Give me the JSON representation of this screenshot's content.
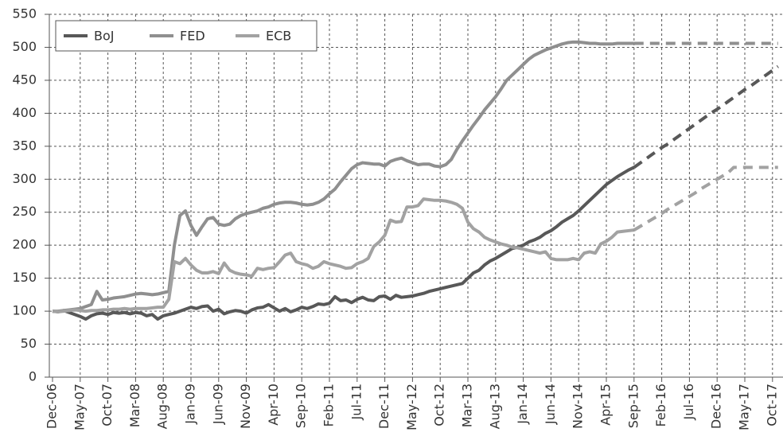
{
  "chart_data": {
    "type": "line",
    "categories": [
      "Dec-06",
      null,
      null,
      null,
      null,
      "May-07",
      null,
      null,
      null,
      null,
      "Oct-07",
      null,
      null,
      null,
      null,
      "Mar-08",
      null,
      null,
      null,
      null,
      "Aug-08",
      null,
      null,
      null,
      null,
      "Jan-09",
      null,
      null,
      null,
      null,
      "Jun-09",
      null,
      null,
      null,
      null,
      "Nov-09",
      null,
      null,
      null,
      null,
      "Apr-10",
      null,
      null,
      null,
      null,
      "Sep-10",
      null,
      null,
      null,
      null,
      "Feb-11",
      null,
      null,
      null,
      null,
      "Jul-11",
      null,
      null,
      null,
      null,
      "Dec-11",
      null,
      null,
      null,
      null,
      "May-12",
      null,
      null,
      null,
      null,
      "Oct-12",
      null,
      null,
      null,
      null,
      "Mar-13",
      null,
      null,
      null,
      null,
      "Aug-13",
      null,
      null,
      null,
      null,
      "Jan-14",
      null,
      null,
      null,
      null,
      "Jun-14",
      null,
      null,
      null,
      null,
      "Nov-14",
      null,
      null,
      null,
      null,
      "Apr-15",
      null,
      null,
      null,
      null,
      "Sep-15",
      null,
      null,
      null,
      null,
      "Feb-16",
      null,
      null,
      null,
      null,
      "Jul-16",
      null,
      null,
      null,
      null,
      "Dec-16",
      null,
      null,
      null,
      null,
      "May-17",
      null,
      null,
      null,
      null,
      "Oct-17",
      null
    ],
    "series": [
      {
        "name": "BoJ",
        "color": "#585858",
        "values": [
          100,
          99,
          101,
          98,
          95,
          92,
          88,
          93,
          96,
          97,
          95,
          98,
          97,
          98,
          96,
          98,
          97,
          93,
          95,
          88,
          93,
          95,
          97,
          100,
          103,
          106,
          104,
          107,
          108,
          100,
          103,
          96,
          99,
          101,
          100,
          97,
          102,
          105,
          106,
          110,
          105,
          100,
          104,
          99,
          102,
          106,
          104,
          107,
          111,
          110,
          112,
          122,
          116,
          117,
          113,
          118,
          121,
          117,
          116,
          122,
          123,
          118,
          124,
          121,
          122,
          123,
          125,
          127,
          130,
          132,
          134,
          136,
          138,
          140,
          142,
          150,
          158,
          162,
          170,
          176,
          180,
          185,
          190,
          195,
          197,
          200,
          205,
          208,
          212,
          218,
          222,
          228,
          235,
          240,
          245,
          252,
          260,
          268,
          276,
          284,
          292,
          298,
          304,
          309,
          314,
          318,
          null,
          null,
          null,
          null,
          null,
          null,
          null,
          null,
          null,
          null,
          null,
          null,
          null,
          null,
          null,
          null,
          null,
          null,
          null,
          null,
          null,
          null,
          null,
          null,
          null,
          null
        ],
        "projection": [
          null,
          null,
          null,
          null,
          null,
          null,
          null,
          null,
          null,
          null,
          null,
          null,
          null,
          null,
          null,
          null,
          null,
          null,
          null,
          null,
          null,
          null,
          null,
          null,
          null,
          null,
          null,
          null,
          null,
          null,
          null,
          null,
          null,
          null,
          null,
          null,
          null,
          null,
          null,
          null,
          null,
          null,
          null,
          null,
          null,
          null,
          null,
          null,
          null,
          null,
          null,
          null,
          null,
          null,
          null,
          null,
          null,
          null,
          null,
          null,
          null,
          null,
          null,
          null,
          null,
          null,
          null,
          null,
          null,
          null,
          null,
          null,
          null,
          null,
          null,
          null,
          null,
          null,
          null,
          null,
          null,
          null,
          null,
          null,
          null,
          null,
          null,
          null,
          null,
          null,
          null,
          null,
          null,
          null,
          null,
          null,
          null,
          null,
          null,
          null,
          null,
          null,
          null,
          null,
          null,
          318,
          324,
          330,
          336,
          342,
          348,
          353,
          359,
          365,
          371,
          377,
          383,
          389,
          395,
          401,
          406,
          412,
          418,
          424,
          430,
          436,
          441,
          447,
          453,
          459,
          465,
          471
        ]
      },
      {
        "name": "FED",
        "color": "#8f8f8f",
        "values": [
          100,
          100,
          101,
          102,
          103,
          104,
          107,
          110,
          130,
          117,
          118,
          120,
          121,
          122,
          124,
          126,
          127,
          126,
          125,
          126,
          128,
          130,
          200,
          245,
          252,
          230,
          215,
          228,
          240,
          242,
          232,
          230,
          232,
          240,
          245,
          248,
          250,
          252,
          256,
          258,
          262,
          264,
          265,
          265,
          264,
          262,
          261,
          262,
          265,
          270,
          278,
          285,
          296,
          306,
          316,
          322,
          325,
          324,
          323,
          323,
          320,
          327,
          330,
          332,
          328,
          325,
          322,
          323,
          323,
          320,
          319,
          322,
          330,
          345,
          358,
          370,
          382,
          393,
          405,
          415,
          425,
          437,
          450,
          458,
          466,
          474,
          482,
          488,
          492,
          496,
          499,
          502,
          505,
          507,
          508,
          508,
          507,
          506,
          506,
          505,
          505,
          505,
          506,
          506,
          506,
          506,
          null,
          null,
          null,
          null,
          null,
          null,
          null,
          null,
          null,
          null,
          null,
          null,
          null,
          null,
          null,
          null,
          null,
          null,
          null,
          null,
          null,
          null,
          null,
          null,
          null,
          null
        ],
        "projection": [
          null,
          null,
          null,
          null,
          null,
          null,
          null,
          null,
          null,
          null,
          null,
          null,
          null,
          null,
          null,
          null,
          null,
          null,
          null,
          null,
          null,
          null,
          null,
          null,
          null,
          null,
          null,
          null,
          null,
          null,
          null,
          null,
          null,
          null,
          null,
          null,
          null,
          null,
          null,
          null,
          null,
          null,
          null,
          null,
          null,
          null,
          null,
          null,
          null,
          null,
          null,
          null,
          null,
          null,
          null,
          null,
          null,
          null,
          null,
          null,
          null,
          null,
          null,
          null,
          null,
          null,
          null,
          null,
          null,
          null,
          null,
          null,
          null,
          null,
          null,
          null,
          null,
          null,
          null,
          null,
          null,
          null,
          null,
          null,
          null,
          null,
          null,
          null,
          null,
          null,
          null,
          null,
          null,
          null,
          null,
          null,
          null,
          null,
          null,
          null,
          null,
          null,
          null,
          null,
          null,
          506,
          506,
          506,
          506,
          506,
          506,
          506,
          506,
          506,
          506,
          506,
          506,
          506,
          506,
          506,
          506,
          506,
          506,
          506,
          506,
          506,
          506,
          506,
          506,
          506,
          506,
          506
        ]
      },
      {
        "name": "ECB",
        "color": "#a2a2a2",
        "values": [
          100,
          99,
          100,
          101,
          102,
          101,
          100,
          101,
          101,
          102,
          102,
          103,
          103,
          104,
          103,
          104,
          104,
          104,
          105,
          106,
          106,
          118,
          175,
          172,
          180,
          170,
          162,
          158,
          158,
          160,
          157,
          173,
          162,
          158,
          156,
          155,
          153,
          165,
          163,
          165,
          166,
          175,
          185,
          188,
          175,
          172,
          170,
          165,
          168,
          175,
          172,
          170,
          168,
          165,
          166,
          172,
          175,
          180,
          198,
          205,
          215,
          238,
          235,
          236,
          258,
          258,
          260,
          270,
          269,
          268,
          268,
          267,
          265,
          262,
          256,
          235,
          225,
          220,
          212,
          208,
          205,
          202,
          200,
          197,
          196,
          194,
          192,
          190,
          188,
          190,
          180,
          178,
          178,
          178,
          180,
          178,
          188,
          190,
          188,
          202,
          206,
          212,
          220,
          221,
          222,
          223,
          null,
          null,
          null,
          null,
          null,
          null,
          null,
          null,
          null,
          null,
          null,
          null,
          null,
          null,
          null,
          null,
          null,
          null,
          null,
          null,
          null,
          null,
          null,
          null,
          null,
          null
        ],
        "projection": [
          null,
          null,
          null,
          null,
          null,
          null,
          null,
          null,
          null,
          null,
          null,
          null,
          null,
          null,
          null,
          null,
          null,
          null,
          null,
          null,
          null,
          null,
          null,
          null,
          null,
          null,
          null,
          null,
          null,
          null,
          null,
          null,
          null,
          null,
          null,
          null,
          null,
          null,
          null,
          null,
          null,
          null,
          null,
          null,
          null,
          null,
          null,
          null,
          null,
          null,
          null,
          null,
          null,
          null,
          null,
          null,
          null,
          null,
          null,
          null,
          null,
          null,
          null,
          null,
          null,
          null,
          null,
          null,
          null,
          null,
          null,
          null,
          null,
          null,
          null,
          null,
          null,
          null,
          null,
          null,
          null,
          null,
          null,
          null,
          null,
          null,
          null,
          null,
          null,
          null,
          null,
          null,
          null,
          null,
          null,
          null,
          null,
          null,
          null,
          null,
          null,
          null,
          null,
          null,
          null,
          223,
          228,
          233,
          238,
          243,
          248,
          254,
          259,
          264,
          269,
          274,
          279,
          285,
          290,
          295,
          300,
          305,
          310,
          318,
          318,
          318,
          318,
          318,
          318,
          318,
          318,
          318
        ]
      }
    ],
    "ylim": [
      0,
      550
    ],
    "yticks": [
      0,
      50,
      100,
      150,
      200,
      250,
      300,
      350,
      400,
      450,
      500,
      550
    ],
    "grid": true,
    "legend": "upper left"
  }
}
